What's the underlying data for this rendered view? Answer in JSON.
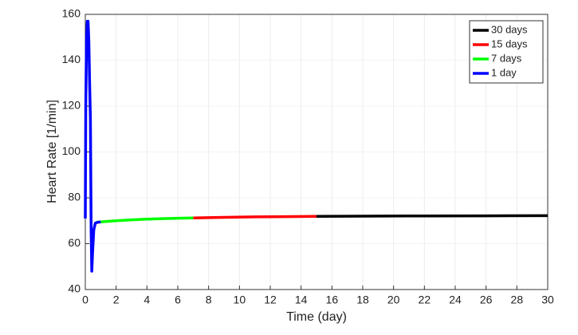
{
  "chart_data": {
    "type": "line",
    "x_label": "Time (day)",
    "y_label": "Heart Rate [1/min]",
    "xlim": [
      0,
      30
    ],
    "xticks": [
      0,
      2,
      4,
      6,
      8,
      10,
      12,
      14,
      16,
      18,
      20,
      22,
      24,
      26,
      28,
      30
    ],
    "ylim": [
      40,
      160
    ],
    "yticks": [
      40,
      60,
      80,
      100,
      120,
      140,
      160
    ],
    "grid": true,
    "legend": "upper-right",
    "series": [
      {
        "name": "30 days",
        "color": "#000000",
        "x": [
          15,
          18,
          22,
          26,
          30
        ],
        "values": [
          71.9,
          72.0,
          72.1,
          72.15,
          72.2
        ]
      },
      {
        "name": "15 days",
        "color": "#ff0000",
        "x": [
          7,
          9,
          11,
          13,
          15
        ],
        "values": [
          71.2,
          71.5,
          71.7,
          71.8,
          71.9
        ]
      },
      {
        "name": "7 days",
        "color": "#00ff00",
        "x": [
          0.7,
          1,
          2,
          3,
          4,
          5,
          6,
          7
        ],
        "values": [
          69.3,
          69.5,
          70.0,
          70.4,
          70.7,
          70.9,
          71.1,
          71.2
        ]
      },
      {
        "name": "1 day",
        "color": "#0000ff",
        "x": [
          0,
          0.03,
          0.08,
          0.13,
          0.18,
          0.23,
          0.28,
          0.33,
          0.38,
          0.42,
          0.47,
          0.55,
          0.65,
          0.8,
          1.0
        ],
        "values": [
          71,
          120,
          150,
          157,
          157,
          148,
          130,
          115,
          65,
          48,
          56,
          66,
          69,
          69.3,
          69.5
        ]
      }
    ]
  }
}
